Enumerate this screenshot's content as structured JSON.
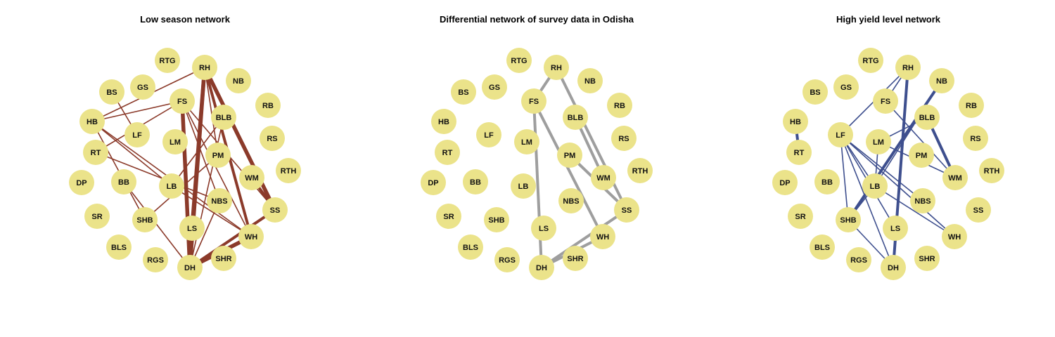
{
  "colors": {
    "node_fill": "#ebe38a",
    "node_text": "#111111",
    "low_season_edge": "#8b3a2a",
    "differential_edge": "#9e9e9e",
    "high_yield_edge": "#3e4f8e",
    "background": "#ffffff"
  },
  "node_labels": [
    "RTG",
    "RH",
    "NB",
    "BS",
    "GS",
    "RB",
    "FS",
    "BLB",
    "HB",
    "LF",
    "LM",
    "RS",
    "RT",
    "PM",
    "RTH",
    "WM",
    "DP",
    "BB",
    "LB",
    "NBS",
    "SS",
    "SR",
    "SHB",
    "LS",
    "WH",
    "BLS",
    "RGS",
    "SHR",
    "DH"
  ],
  "panels": [
    {
      "title": "Low season network",
      "edge_color": "#8b3a2a",
      "edges": [
        {
          "source": "RH",
          "target": "HB",
          "weight": 1
        },
        {
          "source": "RH",
          "target": "LS",
          "weight": 3
        },
        {
          "source": "RH",
          "target": "DH",
          "weight": 3
        },
        {
          "source": "RH",
          "target": "SS",
          "weight": 3
        },
        {
          "source": "RH",
          "target": "WH",
          "weight": 2
        },
        {
          "source": "RH",
          "target": "PM",
          "weight": 1
        },
        {
          "source": "FS",
          "target": "HB",
          "weight": 1
        },
        {
          "source": "FS",
          "target": "DH",
          "weight": 3
        },
        {
          "source": "FS",
          "target": "WH",
          "weight": 1
        },
        {
          "source": "FS",
          "target": "NBS",
          "weight": 1
        },
        {
          "source": "FS",
          "target": "SS",
          "weight": 1
        },
        {
          "source": "FS",
          "target": "RT",
          "weight": 1
        },
        {
          "source": "BLB",
          "target": "LB",
          "weight": 1
        },
        {
          "source": "BLB",
          "target": "DH",
          "weight": 1
        },
        {
          "source": "HB",
          "target": "LB",
          "weight": 1
        },
        {
          "source": "HB",
          "target": "SHB",
          "weight": 1
        },
        {
          "source": "HB",
          "target": "WH",
          "weight": 1
        },
        {
          "source": "LF",
          "target": "BS",
          "weight": 1
        },
        {
          "source": "RT",
          "target": "NBS",
          "weight": 1
        },
        {
          "source": "BB",
          "target": "DH",
          "weight": 1
        },
        {
          "source": "LB",
          "target": "WH",
          "weight": 1
        },
        {
          "source": "SHB",
          "target": "PM",
          "weight": 1
        },
        {
          "source": "NBS",
          "target": "DH",
          "weight": 1
        },
        {
          "source": "WH",
          "target": "DH",
          "weight": 3
        },
        {
          "source": "WM",
          "target": "SS",
          "weight": 2
        },
        {
          "source": "SS",
          "target": "DH",
          "weight": 2
        }
      ]
    },
    {
      "title": "Differential network of survey data in Odisha",
      "edge_color": "#9e9e9e",
      "edges": [
        {
          "source": "RH",
          "target": "FS",
          "weight": 2
        },
        {
          "source": "RH",
          "target": "SS",
          "weight": 2
        },
        {
          "source": "FS",
          "target": "WH",
          "weight": 2
        },
        {
          "source": "FS",
          "target": "DH",
          "weight": 2
        },
        {
          "source": "BLB",
          "target": "WM",
          "weight": 2
        },
        {
          "source": "PM",
          "target": "SS",
          "weight": 2
        },
        {
          "source": "SS",
          "target": "DH",
          "weight": 2
        },
        {
          "source": "WH",
          "target": "DH",
          "weight": 2
        }
      ]
    },
    {
      "title": "High yield level network",
      "edge_color": "#3e4f8e",
      "edges": [
        {
          "source": "RH",
          "target": "FS",
          "weight": 1
        },
        {
          "source": "RH",
          "target": "DH",
          "weight": 2
        },
        {
          "source": "RH",
          "target": "LF",
          "weight": 1
        },
        {
          "source": "NB",
          "target": "LB",
          "weight": 1
        },
        {
          "source": "NB",
          "target": "SHB",
          "weight": 2
        },
        {
          "source": "FS",
          "target": "WM",
          "weight": 1
        },
        {
          "source": "BLB",
          "target": "LM",
          "weight": 1
        },
        {
          "source": "BLB",
          "target": "WM",
          "weight": 2
        },
        {
          "source": "HB",
          "target": "RT",
          "weight": 2
        },
        {
          "source": "LF",
          "target": "LB",
          "weight": 1
        },
        {
          "source": "LF",
          "target": "NBS",
          "weight": 1
        },
        {
          "source": "LF",
          "target": "WH",
          "weight": 1
        },
        {
          "source": "LF",
          "target": "DH",
          "weight": 1
        },
        {
          "source": "LF",
          "target": "SHB",
          "weight": 1
        },
        {
          "source": "LF",
          "target": "LS",
          "weight": 1
        },
        {
          "source": "LM",
          "target": "WM",
          "weight": 1
        },
        {
          "source": "LM",
          "target": "LB",
          "weight": 1
        },
        {
          "source": "LB",
          "target": "WH",
          "weight": 1
        },
        {
          "source": "LB",
          "target": "SHB",
          "weight": 1
        },
        {
          "source": "SHB",
          "target": "DH",
          "weight": 1
        }
      ]
    }
  ]
}
